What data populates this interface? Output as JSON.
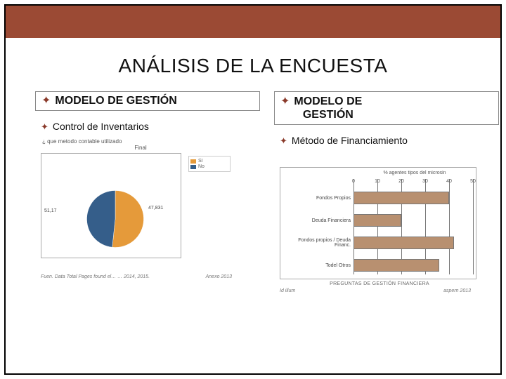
{
  "colors": {
    "band": "#9b4a34",
    "bullet": "#8a3a2a"
  },
  "title": "ANÁLISIS DE LA ENCUESTA",
  "left": {
    "heading": "MODELO DE GESTIÓN",
    "sub": "Control de Inventarios",
    "chart": {
      "type": "pie",
      "title_line1": "¿ que metodo contable utilizado",
      "title_line2": "Final",
      "slices": [
        {
          "label": "51,17",
          "value": 51.17,
          "color": "#e59a3a"
        },
        {
          "label": "47,831",
          "value": 47.83,
          "color": "#355e8a"
        }
      ],
      "legend": [
        {
          "label": "SI",
          "color": "#e59a3a"
        },
        {
          "label": "No",
          "color": "#355e8a"
        }
      ],
      "footer_left": "Fuen. Data Total Pages found el… … 2014, 2015.",
      "footer_right": "Anexo 2013",
      "background": "#ffffff",
      "border_color": "#aaaaaa"
    }
  },
  "right": {
    "heading_line1": "MODELO DE",
    "heading_line2": "GESTIÓN",
    "sub": "Método de Financiamiento",
    "chart": {
      "type": "bar-horizontal",
      "axis_title": "% agentes tipos del microsin",
      "ticks": [
        0,
        10,
        20,
        30,
        40,
        50
      ],
      "xlim": [
        0,
        50
      ],
      "grid_color": "#777777",
      "bars": [
        {
          "label": "Fondos Propios",
          "value": 40,
          "color": "#b89070"
        },
        {
          "label": "Deuda Financiera",
          "value": 20,
          "color": "#b89070"
        },
        {
          "label": "Fondos propios / Deuda Financ.",
          "value": 42,
          "color": "#b89070"
        },
        {
          "label": "Todel Otros",
          "value": 36,
          "color": "#b89070"
        }
      ],
      "footer_title": "PREGUNTAS DE GESTIÓN FINANCIERA",
      "footer_left": "Id illum",
      "footer_right": "aspern 2013",
      "background": "#ffffff",
      "border_color": "#aaaaaa",
      "bar_border": "#777777"
    }
  }
}
